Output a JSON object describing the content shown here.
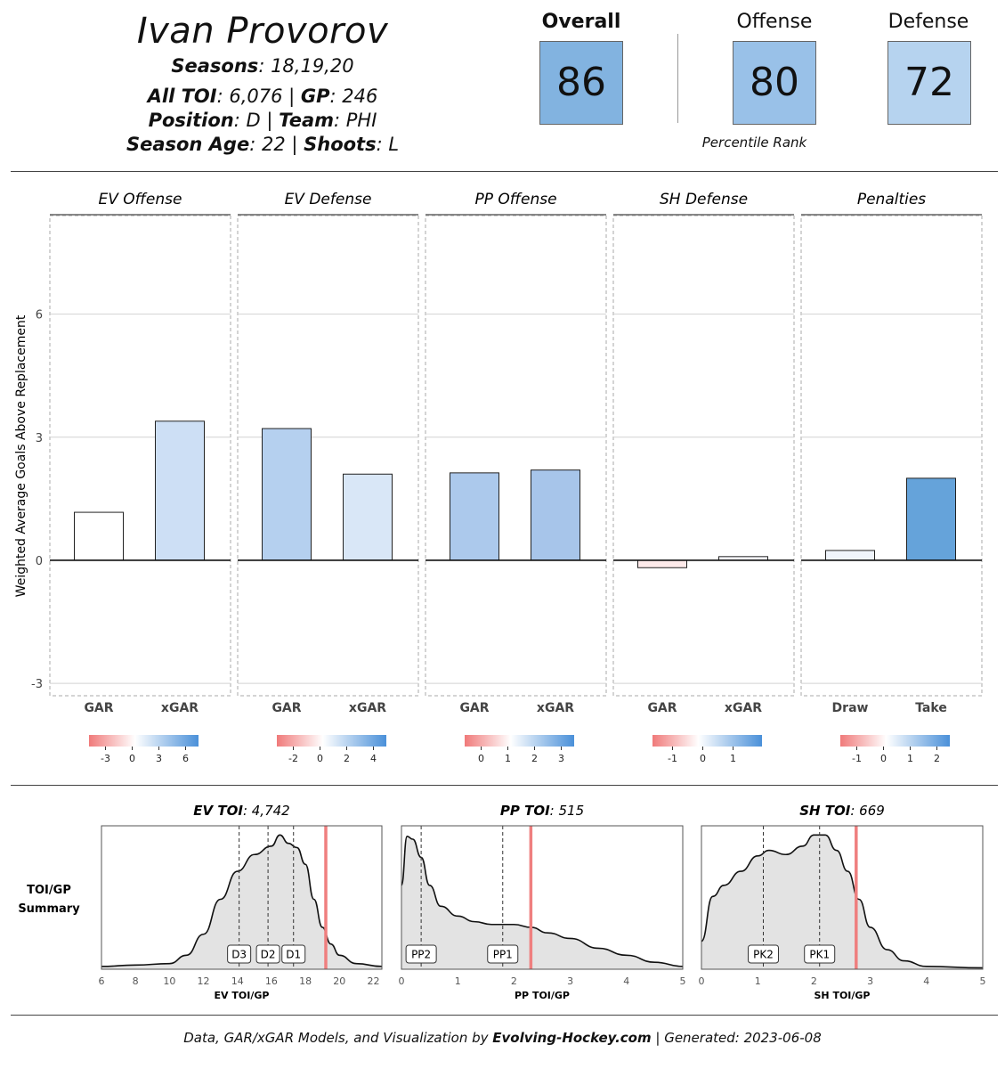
{
  "header": {
    "player_name": "Ivan Provorov",
    "seasons_label": "Seasons",
    "seasons_value": ": 18,19,20",
    "toi_label": "All TOI",
    "toi_value": ": 6,076 | ",
    "gp_label": "GP",
    "gp_value": ": 246",
    "position_label": "Position",
    "position_value": ": D | ",
    "team_label": "Team",
    "team_value": ": PHI",
    "age_label": "Season Age",
    "age_value": ": 22 | ",
    "shoots_label": "Shoots",
    "shoots_value": ": L"
  },
  "ratings": {
    "overall_label": "Overall",
    "overall_value": "86",
    "offense_label": "Offense",
    "offense_value": "80",
    "defense_label": "Defense",
    "defense_value": "72",
    "percentile_label": "Percentile Rank",
    "overall_color": "#82b3e0",
    "offense_color": "#99c1e8",
    "defense_color": "#b6d3ef"
  },
  "chart_data": [
    {
      "type": "bar",
      "ylabel": "Weighted Average Goals Above Replacement",
      "ylim": [
        -3.3,
        8.4
      ],
      "yticks": [
        -3,
        0,
        3,
        6
      ],
      "panels": [
        {
          "title": "EV Offense",
          "categories": [
            "GAR",
            "xGAR"
          ],
          "values": [
            1.17,
            3.39
          ],
          "colors": [
            "#ffffff",
            "#cddff5"
          ],
          "legend_ticks": [
            "-3",
            "0",
            "3",
            "6"
          ]
        },
        {
          "title": "EV Defense",
          "categories": [
            "GAR",
            "xGAR"
          ],
          "values": [
            3.21,
            2.1
          ],
          "colors": [
            "#b5d0ef",
            "#d9e7f7"
          ],
          "legend_ticks": [
            "-2",
            "0",
            "2",
            "4"
          ]
        },
        {
          "title": "PP Offense",
          "categories": [
            "GAR",
            "xGAR"
          ],
          "values": [
            2.13,
            2.2
          ],
          "colors": [
            "#acc9ec",
            "#a7c5ea"
          ],
          "legend_ticks": [
            "0",
            "1",
            "2",
            "3"
          ]
        },
        {
          "title": "SH Defense",
          "categories": [
            "GAR",
            "xGAR"
          ],
          "values": [
            -0.18,
            0.09
          ],
          "colors": [
            "#fdeaea",
            "#f8fafe"
          ],
          "legend_ticks": [
            "-1",
            "0",
            "1"
          ]
        },
        {
          "title": "Penalties",
          "categories": [
            "Draw",
            "Take"
          ],
          "values": [
            0.24,
            2.0
          ],
          "colors": [
            "#eff4fb",
            "#65a3da"
          ],
          "legend_ticks": [
            "-1",
            "0",
            "1",
            "2"
          ]
        }
      ]
    },
    {
      "type": "area",
      "title_label": "EV TOI",
      "title_value": ": 4,742",
      "xlabel": "EV TOI/GP",
      "xlim": [
        6,
        22.5
      ],
      "xticks": [
        6,
        8,
        10,
        12,
        14,
        16,
        18,
        20,
        22
      ],
      "player_value": 19.2,
      "markers": [
        {
          "label": "D3",
          "x": 14.1
        },
        {
          "label": "D2",
          "x": 15.8
        },
        {
          "label": "D1",
          "x": 17.3
        }
      ],
      "density": [
        [
          6,
          0.02
        ],
        [
          8,
          0.03
        ],
        [
          10,
          0.04
        ],
        [
          11,
          0.1
        ],
        [
          12,
          0.25
        ],
        [
          13,
          0.5
        ],
        [
          14,
          0.7
        ],
        [
          15,
          0.82
        ],
        [
          16,
          0.88
        ],
        [
          16.5,
          0.96
        ],
        [
          17,
          0.9
        ],
        [
          17.5,
          0.87
        ],
        [
          18,
          0.75
        ],
        [
          18.5,
          0.5
        ],
        [
          19,
          0.3
        ],
        [
          19.5,
          0.18
        ],
        [
          20,
          0.1
        ],
        [
          21,
          0.04
        ],
        [
          22.5,
          0.02
        ]
      ]
    },
    {
      "type": "area",
      "title_label": "PP TOI",
      "title_value": ": 515",
      "xlabel": "PP TOI/GP",
      "xlim": [
        0,
        5
      ],
      "xticks": [
        0,
        1,
        2,
        3,
        4,
        5
      ],
      "player_value": 2.3,
      "markers": [
        {
          "label": "PP2",
          "x": 0.35
        },
        {
          "label": "PP1",
          "x": 1.8
        }
      ],
      "density": [
        [
          0,
          0.6
        ],
        [
          0.1,
          0.95
        ],
        [
          0.2,
          0.93
        ],
        [
          0.35,
          0.8
        ],
        [
          0.5,
          0.6
        ],
        [
          0.7,
          0.45
        ],
        [
          1,
          0.38
        ],
        [
          1.3,
          0.34
        ],
        [
          1.6,
          0.32
        ],
        [
          2,
          0.32
        ],
        [
          2.3,
          0.3
        ],
        [
          2.6,
          0.26
        ],
        [
          3,
          0.22
        ],
        [
          3.5,
          0.15
        ],
        [
          4,
          0.1
        ],
        [
          4.5,
          0.05
        ],
        [
          5,
          0.02
        ]
      ]
    },
    {
      "type": "area",
      "title_label": "SH TOI",
      "title_value": ": 669",
      "xlabel": "SH TOI/GP",
      "xlim": [
        0,
        5
      ],
      "xticks": [
        0,
        1,
        2,
        3,
        4,
        5
      ],
      "player_value": 2.75,
      "markers": [
        {
          "label": "PK2",
          "x": 1.1
        },
        {
          "label": "PK1",
          "x": 2.1
        }
      ],
      "density": [
        [
          0,
          0.2
        ],
        [
          0.2,
          0.52
        ],
        [
          0.4,
          0.6
        ],
        [
          0.7,
          0.7
        ],
        [
          1,
          0.81
        ],
        [
          1.2,
          0.85
        ],
        [
          1.5,
          0.82
        ],
        [
          1.8,
          0.88
        ],
        [
          2,
          0.96
        ],
        [
          2.2,
          0.96
        ],
        [
          2.4,
          0.85
        ],
        [
          2.6,
          0.7
        ],
        [
          2.8,
          0.5
        ],
        [
          3,
          0.3
        ],
        [
          3.3,
          0.14
        ],
        [
          3.6,
          0.06
        ],
        [
          4,
          0.02
        ],
        [
          5,
          0.01
        ]
      ]
    }
  ],
  "legend": {
    "color_low": "#f07a7a",
    "color_mid": "#ffffff",
    "color_high": "#4a90d9"
  },
  "toi_summary": {
    "label_line1": "TOI/GP",
    "label_line2": "Summary"
  },
  "footer": {
    "prefix": "Data, GAR/xGAR Models, and Visualization by ",
    "site": "Evolving-Hockey.com",
    "suffix": " | Generated: 2023-06-08"
  }
}
